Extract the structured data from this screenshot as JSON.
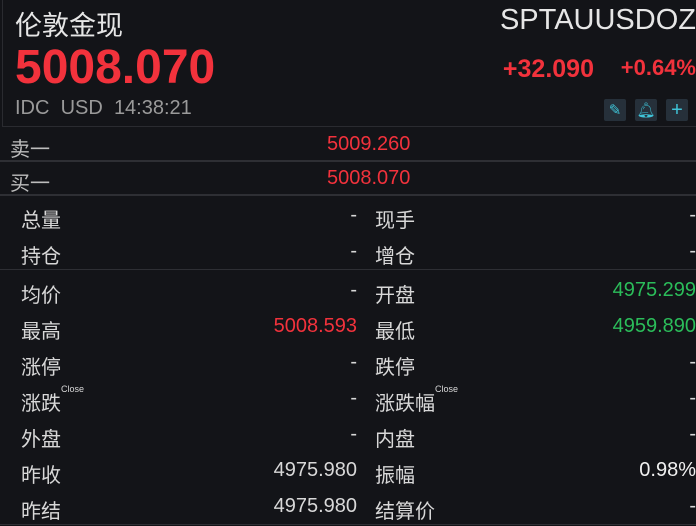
{
  "header": {
    "title": "伦敦金现",
    "code": "SPTAUUSDOZ",
    "price": "5008.070",
    "change": "+32.090",
    "change_pct": "+0.64%",
    "source": "IDC",
    "currency": "USD",
    "time": "14:38:21",
    "icons": [
      "edit-icon",
      "bell-icon",
      "plus-icon"
    ]
  },
  "orderbook": [
    {
      "label": "卖一",
      "value": "5009.260"
    },
    {
      "label": "买一",
      "value": "5008.070"
    }
  ],
  "stats1": [
    {
      "k1": "总量",
      "v1": "-",
      "k2": "现手",
      "v2": "-"
    },
    {
      "k1": "持仓",
      "v1": "-",
      "k2": "增仓",
      "v2": "-"
    }
  ],
  "stats2": [
    {
      "k1": "均价",
      "v1": "-",
      "k2": "开盘",
      "v2": "4975.299",
      "c2": "green"
    },
    {
      "k1": "最高",
      "v1": "5008.593",
      "c1": "red",
      "k2": "最低",
      "v2": "4959.890",
      "c2": "green"
    },
    {
      "k1": "涨停",
      "v1": "-",
      "k2": "跌停",
      "v2": "-"
    },
    {
      "k1": "涨跌",
      "s1": "Close",
      "v1": "-",
      "k2": "涨跌幅",
      "s2": "Close",
      "v2": "-"
    },
    {
      "k1": "外盘",
      "v1": "-",
      "k2": "内盘",
      "v2": "-"
    },
    {
      "k1": "昨收",
      "v1": "4975.980",
      "k2": "振幅",
      "v2": "0.98%",
      "c2": "white"
    },
    {
      "k1": "昨结",
      "v1": "4975.980",
      "k2": "结算价",
      "v2": "-"
    }
  ],
  "colors": {
    "up": "#f2323c",
    "down": "#2bbd5a",
    "bg": "#131418"
  }
}
